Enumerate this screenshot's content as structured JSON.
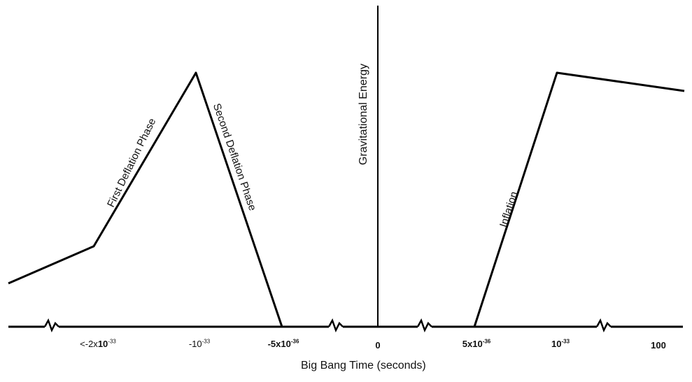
{
  "diagram": {
    "y_axis_label": "Gravitational Energy",
    "x_axis_label": "Big Bang Time (seconds)",
    "phase_labels": {
      "first_deflation": "First Deflation Phase",
      "second_deflation": "Second Deflation Phase",
      "inflation": "Inflation"
    },
    "ticks": [
      {
        "base": "<-2x",
        "ten": "10",
        "exp": "-33"
      },
      {
        "base": "-",
        "ten": "10",
        "exp": "-33"
      },
      {
        "base": "-5x",
        "ten": "10",
        "exp": "-36"
      },
      {
        "base": "0",
        "ten": "",
        "exp": ""
      },
      {
        "base": "5x",
        "ten": "10",
        "exp": "-36"
      },
      {
        "base": "",
        "ten": "10",
        "exp": "-33"
      },
      {
        "base": "100",
        "ten": "",
        "exp": ""
      }
    ],
    "line_color": "#000000"
  }
}
